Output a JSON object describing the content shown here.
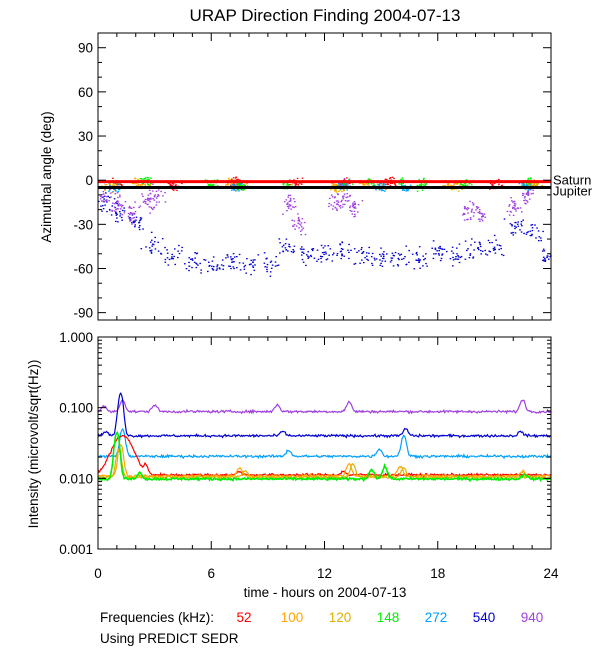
{
  "title": "URAP Direction Finding  2004-07-13",
  "chart_data": [
    {
      "type": "scatter",
      "title": "URAP Direction Finding  2004-07-13",
      "ylabel": "Azimuthal angle (deg)",
      "xlim": [
        0,
        24
      ],
      "ylim": [
        -95,
        100
      ],
      "yticks": [
        90,
        60,
        30,
        0,
        -30,
        -60,
        -90
      ],
      "reference_lines": [
        {
          "name": "Saturn",
          "value": -1,
          "color": "#ff0000"
        },
        {
          "name": "Jupiter",
          "value": -5,
          "color": "#000000"
        }
      ],
      "series": [
        {
          "name": "52",
          "color": "#ff0000",
          "centers": [
            [
              1.0,
              -2
            ],
            [
              4.0,
              -3
            ],
            [
              7.2,
              -1
            ],
            [
              10.5,
              -1
            ],
            [
              13.0,
              -2
            ],
            [
              15.5,
              -1
            ],
            [
              21.0,
              -3
            ]
          ]
        },
        {
          "name": "100",
          "color": "#ffa500",
          "centers": [
            [
              0.6,
              -4
            ],
            [
              2.0,
              -2
            ],
            [
              7.0,
              -1
            ],
            [
              12.5,
              -4
            ],
            [
              14.0,
              -2
            ],
            [
              18.5,
              -3
            ],
            [
              22.8,
              -2
            ]
          ]
        },
        {
          "name": "120",
          "color": "#e0b000",
          "centers": [
            [
              0.8,
              -3
            ],
            [
              2.6,
              -2
            ],
            [
              7.5,
              -3
            ],
            [
              12.8,
              -5
            ],
            [
              15.0,
              -3
            ],
            [
              19.0,
              -4
            ],
            [
              23.1,
              -3
            ]
          ]
        },
        {
          "name": "148",
          "color": "#00ee00",
          "centers": [
            [
              2.5,
              0
            ],
            [
              6.0,
              -2
            ],
            [
              7.6,
              -4
            ],
            [
              10.0,
              -3
            ],
            [
              13.0,
              -2
            ],
            [
              14.5,
              -1
            ],
            [
              16.0,
              -1
            ],
            [
              17.2,
              -3
            ],
            [
              19.4,
              -2
            ],
            [
              22.8,
              -1
            ]
          ]
        },
        {
          "name": "272",
          "color": "#00a0ff",
          "centers": [
            [
              0.9,
              -4
            ],
            [
              7.3,
              -4
            ],
            [
              12.9,
              -3
            ],
            [
              15.0,
              -4
            ],
            [
              16.2,
              -5
            ],
            [
              22.6,
              -4
            ]
          ]
        },
        {
          "name": "540",
          "color": "#0000d0",
          "centers": [
            [
              0.3,
              -15
            ],
            [
              1.0,
              -22
            ],
            [
              2.0,
              -28
            ],
            [
              3.0,
              -45
            ],
            [
              4.0,
              -50
            ],
            [
              5.0,
              -55
            ],
            [
              6.0,
              -57
            ],
            [
              7.0,
              -55
            ],
            [
              8.0,
              -57
            ],
            [
              9.0,
              -56
            ],
            [
              10.0,
              -45
            ],
            [
              11.0,
              -50
            ],
            [
              12.0,
              -50
            ],
            [
              13.0,
              -47
            ],
            [
              14.0,
              -50
            ],
            [
              15.0,
              -53
            ],
            [
              16.0,
              -52
            ],
            [
              17.0,
              -53
            ],
            [
              18.0,
              -48
            ],
            [
              19.0,
              -50
            ],
            [
              20.0,
              -46
            ],
            [
              21.0,
              -45
            ],
            [
              22.0,
              -30
            ],
            [
              23.0,
              -35
            ],
            [
              23.8,
              -52
            ]
          ]
        },
        {
          "name": "940",
          "color": "#a040e0",
          "centers": [
            [
              0.3,
              -10
            ],
            [
              1.0,
              -16
            ],
            [
              1.7,
              -22
            ],
            [
              2.6,
              -15
            ],
            [
              3.0,
              -10
            ],
            [
              10.1,
              -15
            ],
            [
              10.6,
              -30
            ],
            [
              12.6,
              -15
            ],
            [
              13.0,
              -8
            ],
            [
              13.5,
              -18
            ],
            [
              19.6,
              -20
            ],
            [
              20.2,
              -22
            ],
            [
              22.0,
              -18
            ],
            [
              22.7,
              -10
            ]
          ]
        }
      ]
    },
    {
      "type": "line",
      "xlabel": "time - hours on 2004-07-13",
      "ylabel": "Intensity (microvolt/sqrt(Hz))",
      "xlim": [
        0,
        24
      ],
      "xticks": [
        0,
        6,
        12,
        18,
        24
      ],
      "yscale": "log",
      "ylim": [
        0.001,
        1.0
      ],
      "yticks": [
        1.0,
        0.1,
        0.01,
        0.001
      ],
      "ytick_labels": [
        "1.000",
        "0.100",
        "0.010",
        "0.001"
      ],
      "series": [
        {
          "name": "940",
          "color": "#a040e0",
          "baseline": 0.088,
          "peaks": [
            [
              0.3,
              0.105
            ],
            [
              1.3,
              0.13
            ],
            [
              3.0,
              0.11
            ],
            [
              9.5,
              0.11
            ],
            [
              13.3,
              0.12
            ],
            [
              22.5,
              0.13
            ]
          ]
        },
        {
          "name": "540",
          "color": "#0000d0",
          "baseline": 0.04,
          "peaks": [
            [
              0.4,
              0.046
            ],
            [
              1.2,
              0.16
            ],
            [
              9.8,
              0.046
            ],
            [
              16.3,
              0.05
            ],
            [
              22.4,
              0.046
            ]
          ]
        },
        {
          "name": "272",
          "color": "#00a0ff",
          "baseline": 0.0205,
          "peaks": [
            [
              1.3,
              0.05
            ],
            [
              10.1,
              0.025
            ],
            [
              14.9,
              0.026
            ],
            [
              16.2,
              0.04
            ]
          ]
        },
        {
          "name": "52",
          "color": "#ff0000",
          "baseline": 0.0112,
          "peaks": [
            [
              1.3,
              0.04
            ],
            [
              2.5,
              0.016
            ],
            [
              7.5,
              0.0125
            ],
            [
              13.0,
              0.0125
            ]
          ]
        },
        {
          "name": "100",
          "color": "#ffa500",
          "baseline": 0.0108,
          "peaks": [
            [
              1.2,
              0.03
            ],
            [
              7.5,
              0.014
            ],
            [
              13.3,
              0.016
            ],
            [
              16.0,
              0.015
            ],
            [
              22.5,
              0.0125
            ]
          ]
        },
        {
          "name": "120",
          "color": "#e0b000",
          "baseline": 0.0104,
          "peaks": [
            [
              1.1,
              0.025
            ],
            [
              7.8,
              0.013
            ],
            [
              13.5,
              0.016
            ],
            [
              16.2,
              0.014
            ]
          ]
        },
        {
          "name": "148",
          "color": "#00ee00",
          "baseline": 0.0098,
          "peaks": [
            [
              1.0,
              0.045
            ],
            [
              2.2,
              0.012
            ],
            [
              14.5,
              0.0135
            ],
            [
              15.2,
              0.0145
            ],
            [
              22.6,
              0.0115
            ]
          ]
        }
      ]
    }
  ],
  "legend": {
    "label": "Frequencies (kHz):",
    "items": [
      {
        "text": "52",
        "color": "#ff0000"
      },
      {
        "text": "100",
        "color": "#ffa500"
      },
      {
        "text": "120",
        "color": "#e0b000"
      },
      {
        "text": "148",
        "color": "#00ee00"
      },
      {
        "text": "272",
        "color": "#00a0ff"
      },
      {
        "text": "540",
        "color": "#0000d0"
      },
      {
        "text": "940",
        "color": "#a040e0"
      }
    ]
  },
  "source_note": "Using PREDICT SEDR"
}
